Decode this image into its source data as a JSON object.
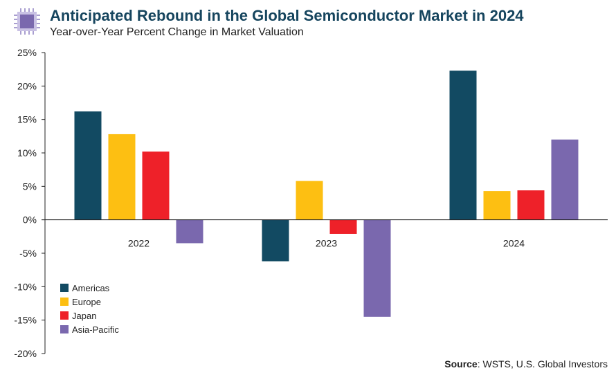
{
  "header": {
    "title": "Anticipated Rebound in the Global Semiconductor Market in 2024",
    "subtitle": "Year-over-Year Percent Change in Market Valuation",
    "icon": "chip-icon"
  },
  "footer": {
    "source_label": "Source",
    "source_text": ": WSTS, U.S. Global Investors"
  },
  "colors": {
    "title": "#16455e",
    "Americas": "#124a62",
    "Europe": "#fdbf12",
    "Japan": "#ee2129",
    "Asia-Pacific": "#7a68ae",
    "icon": "#7a68ae"
  },
  "chart_data": {
    "type": "bar",
    "categories": [
      "2022",
      "2023",
      "2024"
    ],
    "series": [
      {
        "name": "Americas",
        "values": [
          16.2,
          -6.2,
          22.3
        ]
      },
      {
        "name": "Europe",
        "values": [
          12.8,
          5.8,
          4.3
        ]
      },
      {
        "name": "Japan",
        "values": [
          10.2,
          -2.1,
          4.4
        ]
      },
      {
        "name": "Asia-Pacific",
        "values": [
          -3.5,
          -14.5,
          12.0
        ]
      }
    ],
    "ylim": [
      -20,
      25
    ],
    "yticks": [
      25,
      20,
      15,
      10,
      5,
      0,
      -5,
      -10,
      -15,
      -20
    ],
    "ytick_labels": [
      "25%",
      "20%",
      "15%",
      "10%",
      "5%",
      "0%",
      "-5%",
      "-10%",
      "-15%",
      "-20%"
    ],
    "legend_position": "bottom-left",
    "grid": false
  }
}
